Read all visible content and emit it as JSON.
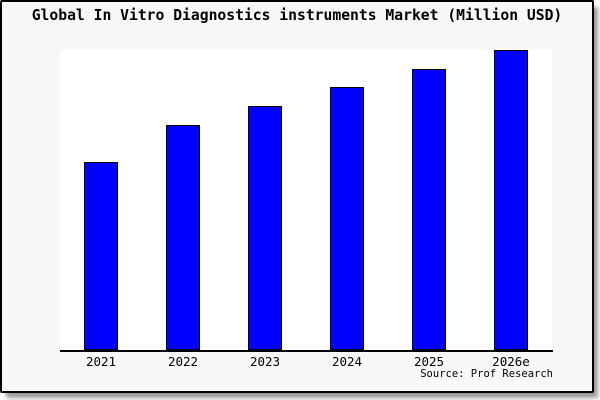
{
  "title": "Global In Vitro Diagnostics instruments Market (Million USD)",
  "source": "Source: Prof Research",
  "colors": {
    "bar_fill": "#0000ff",
    "bar_border": "#000000",
    "card_background": "#f8f8f8",
    "plot_background": "#ffffff",
    "axis": "#000000",
    "text": "#000000",
    "frame_border": "#000000",
    "shadow": "#999999"
  },
  "chart_data": {
    "type": "bar",
    "title": "Global In Vitro Diagnostics instruments Market (Million USD)",
    "categories": [
      "2021",
      "2022",
      "2023",
      "2024",
      "2025",
      "2026e"
    ],
    "values_pct_of_tallest_bar": [
      62.7,
      75.0,
      81.3,
      87.7,
      93.7,
      100.0
    ],
    "values_note": "No numeric y-axis, gridlines or data labels are visible; values are measured bar heights as percent of the tallest (2026e) bar.",
    "xlabel": "",
    "ylabel": "",
    "grid": false,
    "legend": false,
    "y_axis_ticks": "none",
    "source_annotation": "Source: Prof Research"
  }
}
